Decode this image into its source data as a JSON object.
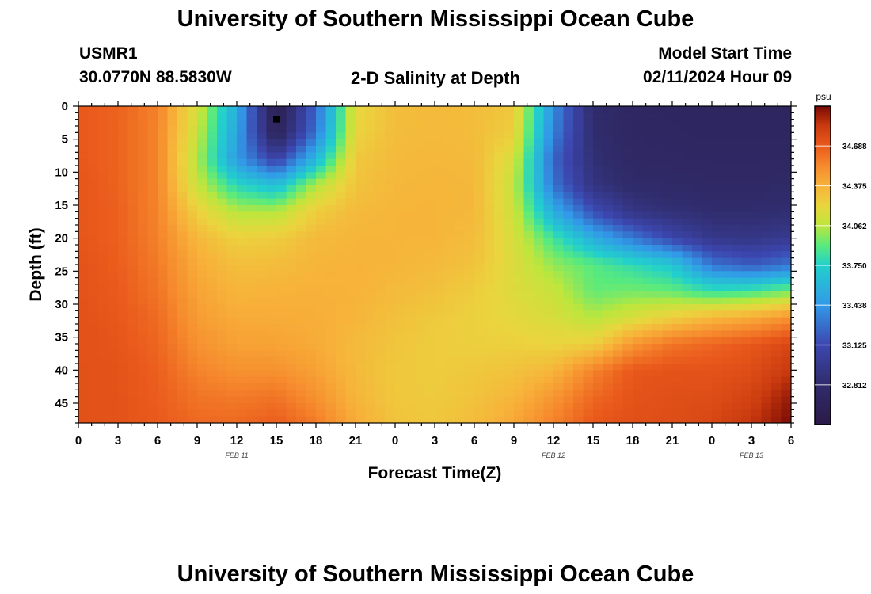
{
  "page_title": "University of Southern Mississippi Ocean Cube",
  "footer_title": "University of Southern Mississippi Ocean Cube",
  "station": {
    "name": "USMR1",
    "coords": "30.0770N  88.5830W"
  },
  "model_start": {
    "label": "Model Start Time",
    "value": "02/11/2024 Hour 09"
  },
  "chart_data": {
    "type": "heatmap",
    "title": "2-D Salinity at Depth",
    "xlabel": "Forecast Time(Z)",
    "ylabel": "Depth (ft)",
    "x_tick_labels": [
      "0",
      "3",
      "6",
      "9",
      "12",
      "15",
      "18",
      "21",
      "0",
      "3",
      "6",
      "9",
      "12",
      "15",
      "18",
      "21",
      "0",
      "3",
      "6"
    ],
    "x_range_hours": [
      0,
      54
    ],
    "date_labels": [
      {
        "hour": 12,
        "text": "FEB 11"
      },
      {
        "hour": 36,
        "text": "FEB 12"
      },
      {
        "hour": 51,
        "text": "FEB 13"
      }
    ],
    "y_ticks": [
      0,
      5,
      10,
      15,
      20,
      25,
      30,
      35,
      40,
      45
    ],
    "y_range_ft": [
      0,
      48
    ],
    "marker": {
      "hour": 15,
      "depth_ft": 2
    },
    "colorbar": {
      "unit": "psu",
      "range": [
        32.5,
        35.0
      ],
      "ticks": [
        "34.688",
        "34.375",
        "34.062",
        "33.750",
        "33.438",
        "33.125",
        "32.812"
      ]
    },
    "colormap": [
      {
        "v": 32.5,
        "c": "#2b1a48"
      },
      {
        "v": 32.812,
        "c": "#302c6c"
      },
      {
        "v": 33.125,
        "c": "#3c47b0"
      },
      {
        "v": 33.438,
        "c": "#3299e8"
      },
      {
        "v": 33.75,
        "c": "#22d0cc"
      },
      {
        "v": 33.906,
        "c": "#59ea7d"
      },
      {
        "v": 34.062,
        "c": "#bde63c"
      },
      {
        "v": 34.22,
        "c": "#ead53e"
      },
      {
        "v": 34.375,
        "c": "#f7b23a"
      },
      {
        "v": 34.53,
        "c": "#f68a2d"
      },
      {
        "v": 34.688,
        "c": "#ea5a1c"
      },
      {
        "v": 34.85,
        "c": "#c8390f"
      },
      {
        "v": 35.0,
        "c": "#7a0a04"
      }
    ],
    "salinity_psu": {
      "depths_ft": [
        0,
        4,
        8,
        12,
        16,
        20,
        24,
        28,
        32,
        36,
        40,
        44,
        48
      ],
      "hours": [
        0,
        3,
        6,
        9,
        12,
        15,
        18,
        21,
        24,
        27,
        30,
        33,
        36,
        39,
        42,
        45,
        48,
        51,
        54
      ],
      "rows": [
        [
          34.7,
          34.66,
          34.56,
          34.14,
          33.55,
          32.58,
          33.25,
          34.2,
          34.32,
          34.34,
          34.33,
          34.28,
          33.4,
          32.8,
          32.72,
          32.71,
          32.7,
          32.7,
          32.7
        ],
        [
          34.7,
          34.66,
          34.55,
          34.1,
          33.5,
          32.65,
          33.3,
          34.22,
          34.33,
          34.34,
          34.33,
          34.25,
          33.35,
          32.82,
          32.73,
          32.72,
          32.71,
          32.71,
          32.71
        ],
        [
          34.7,
          34.66,
          34.55,
          34.05,
          33.45,
          33.05,
          33.6,
          34.28,
          34.34,
          34.35,
          34.34,
          34.15,
          33.25,
          32.85,
          32.75,
          32.74,
          32.73,
          32.73,
          32.73
        ],
        [
          34.71,
          34.66,
          34.55,
          34.1,
          33.78,
          33.65,
          34.05,
          34.3,
          34.35,
          34.36,
          34.35,
          34.1,
          33.3,
          32.9,
          32.79,
          32.77,
          32.76,
          32.76,
          32.77
        ],
        [
          34.71,
          34.67,
          34.55,
          34.24,
          34.05,
          34.05,
          34.26,
          34.34,
          34.36,
          34.36,
          34.35,
          34.12,
          33.55,
          33.15,
          32.92,
          32.86,
          32.82,
          32.82,
          32.84
        ],
        [
          34.71,
          34.67,
          34.56,
          34.35,
          34.24,
          34.26,
          34.34,
          34.36,
          34.36,
          34.36,
          34.33,
          34.15,
          33.85,
          33.55,
          33.32,
          33.1,
          32.95,
          32.93,
          32.98
        ],
        [
          34.72,
          34.68,
          34.58,
          34.4,
          34.32,
          34.33,
          34.36,
          34.37,
          34.36,
          34.34,
          34.3,
          34.17,
          34.0,
          33.9,
          33.8,
          33.7,
          33.3,
          33.2,
          33.3
        ],
        [
          34.72,
          34.69,
          34.6,
          34.43,
          34.36,
          34.37,
          34.38,
          34.37,
          34.34,
          34.31,
          34.26,
          34.17,
          34.1,
          33.92,
          33.95,
          33.92,
          33.82,
          33.85,
          33.95
        ],
        [
          34.73,
          34.7,
          34.63,
          34.46,
          34.4,
          34.4,
          34.39,
          34.36,
          34.31,
          34.27,
          34.24,
          34.2,
          34.15,
          34.05,
          34.15,
          34.25,
          34.35,
          34.4,
          34.5
        ],
        [
          34.73,
          34.71,
          34.65,
          34.5,
          34.44,
          34.43,
          34.4,
          34.34,
          34.29,
          34.26,
          34.25,
          34.24,
          34.22,
          34.25,
          34.48,
          34.6,
          34.65,
          34.7,
          34.78
        ],
        [
          34.73,
          34.72,
          34.67,
          34.55,
          34.5,
          34.5,
          34.44,
          34.34,
          34.28,
          34.26,
          34.28,
          34.3,
          34.36,
          34.55,
          34.7,
          34.72,
          34.72,
          34.75,
          34.85
        ],
        [
          34.73,
          34.72,
          34.68,
          34.6,
          34.58,
          34.6,
          34.5,
          34.36,
          34.28,
          34.27,
          34.3,
          34.36,
          34.48,
          34.64,
          34.72,
          34.74,
          34.75,
          34.8,
          34.95
        ],
        [
          34.73,
          34.72,
          34.69,
          34.64,
          34.64,
          34.68,
          34.58,
          34.4,
          34.3,
          34.28,
          34.33,
          34.42,
          34.56,
          34.7,
          34.74,
          34.75,
          34.78,
          34.86,
          35.0
        ]
      ]
    }
  }
}
